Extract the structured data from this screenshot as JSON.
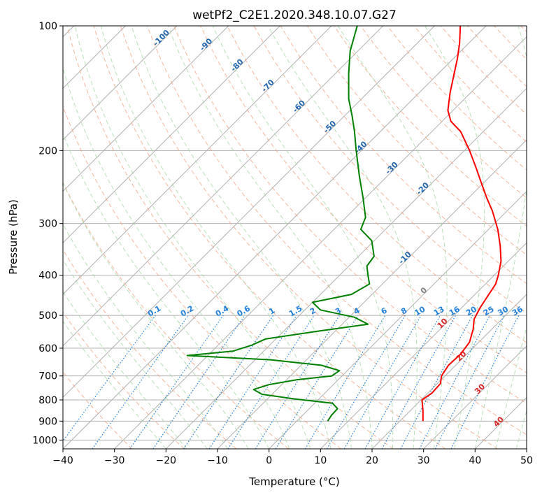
{
  "chart_data": {
    "type": "line",
    "title": "wetPf2_C2E1.2020.348.10.07.G27",
    "xlabel": "Temperature (°C)",
    "ylabel": "Pressure (hPa)",
    "xlim": [
      -40,
      50
    ],
    "ylim": [
      1050,
      100
    ],
    "y_scale": "log",
    "skew_degrees": 45,
    "grid": true,
    "x_ticks": [
      -40,
      -30,
      -20,
      -10,
      0,
      10,
      20,
      30,
      40,
      50
    ],
    "y_ticks": [
      100,
      200,
      300,
      400,
      500,
      600,
      700,
      800,
      900,
      1000
    ],
    "colors": {
      "temperature": "#ff0000",
      "dewpoint": "#008000",
      "isotherm_grid": "#b0b0b0",
      "dry_adiabat": "#f4a582",
      "moist_adiabat": "#a6d8a6",
      "mixing_ratio": "#1f7fd9",
      "isotherm_label_neg": "#2166ac",
      "isotherm_label_pos": "#d62728",
      "isotherm_label_zero": "#808080"
    },
    "series": [
      {
        "role": "temperature",
        "points": [
          {
            "p": 900,
            "t": 24.5
          },
          {
            "p": 850,
            "t": 22.5
          },
          {
            "p": 800,
            "t": 20.2
          },
          {
            "p": 770,
            "t": 20.8
          },
          {
            "p": 730,
            "t": 20.6
          },
          {
            "p": 700,
            "t": 19.3
          },
          {
            "p": 660,
            "t": 18.6
          },
          {
            "p": 620,
            "t": 18.8
          },
          {
            "p": 580,
            "t": 18.2
          },
          {
            "p": 540,
            "t": 16.4
          },
          {
            "p": 510,
            "t": 14.6
          },
          {
            "p": 480,
            "t": 13.6
          },
          {
            "p": 450,
            "t": 12.8
          },
          {
            "p": 420,
            "t": 12.0
          },
          {
            "p": 400,
            "t": 10.8
          },
          {
            "p": 370,
            "t": 8.6
          },
          {
            "p": 340,
            "t": 5.5
          },
          {
            "p": 310,
            "t": 1.8
          },
          {
            "p": 280,
            "t": -2.8
          },
          {
            "p": 260,
            "t": -6.5
          },
          {
            "p": 240,
            "t": -10.3
          },
          {
            "p": 220,
            "t": -14.4
          },
          {
            "p": 200,
            "t": -19.0
          },
          {
            "p": 180,
            "t": -24.4
          },
          {
            "p": 170,
            "t": -28.3
          },
          {
            "p": 160,
            "t": -31.0
          },
          {
            "p": 145,
            "t": -34.0
          },
          {
            "p": 130,
            "t": -37.0
          },
          {
            "p": 120,
            "t": -39.2
          },
          {
            "p": 110,
            "t": -41.8
          },
          {
            "p": 100,
            "t": -45.0
          }
        ]
      },
      {
        "role": "dewpoint",
        "points": [
          {
            "p": 900,
            "t": 6.0
          },
          {
            "p": 870,
            "t": 5.6
          },
          {
            "p": 840,
            "t": 5.5
          },
          {
            "p": 815,
            "t": 3.5
          },
          {
            "p": 795,
            "t": -5.0
          },
          {
            "p": 775,
            "t": -12.0
          },
          {
            "p": 755,
            "t": -14.5
          },
          {
            "p": 735,
            "t": -12.5
          },
          {
            "p": 715,
            "t": -8.0
          },
          {
            "p": 700,
            "t": -2.0
          },
          {
            "p": 680,
            "t": -1.5
          },
          {
            "p": 660,
            "t": -6.0
          },
          {
            "p": 640,
            "t": -17.0
          },
          {
            "p": 625,
            "t": -34.0
          },
          {
            "p": 610,
            "t": -26.0
          },
          {
            "p": 590,
            "t": -23.5
          },
          {
            "p": 570,
            "t": -22.0
          },
          {
            "p": 545,
            "t": -13.0
          },
          {
            "p": 525,
            "t": -5.0
          },
          {
            "p": 505,
            "t": -9.0
          },
          {
            "p": 485,
            "t": -17.0
          },
          {
            "p": 465,
            "t": -20.0
          },
          {
            "p": 445,
            "t": -14.0
          },
          {
            "p": 420,
            "t": -12.5
          },
          {
            "p": 400,
            "t": -14.5
          },
          {
            "p": 380,
            "t": -16.5
          },
          {
            "p": 360,
            "t": -17.0
          },
          {
            "p": 330,
            "t": -20.5
          },
          {
            "p": 310,
            "t": -24.8
          },
          {
            "p": 290,
            "t": -26.2
          },
          {
            "p": 260,
            "t": -30.5
          },
          {
            "p": 230,
            "t": -35.5
          },
          {
            "p": 200,
            "t": -41.0
          },
          {
            "p": 180,
            "t": -45.0
          },
          {
            "p": 165,
            "t": -48.5
          },
          {
            "p": 150,
            "t": -52.5
          },
          {
            "p": 130,
            "t": -57.5
          },
          {
            "p": 115,
            "t": -61.5
          },
          {
            "p": 100,
            "t": -65.0
          }
        ]
      }
    ],
    "isotherm_labels": [
      {
        "text": "-100",
        "value": -100
      },
      {
        "text": "-90",
        "value": -90
      },
      {
        "text": "-80",
        "value": -80
      },
      {
        "text": "-70",
        "value": -70
      },
      {
        "text": "-60",
        "value": -60
      },
      {
        "text": "-50",
        "value": -50
      },
      {
        "text": "-40",
        "value": -40
      },
      {
        "text": "-30",
        "value": -30
      },
      {
        "text": "-20",
        "value": -20
      },
      {
        "text": "-10",
        "value": -10
      },
      {
        "text": "0",
        "value": 0
      },
      {
        "text": "10",
        "value": 10
      },
      {
        "text": "20",
        "value": 20
      },
      {
        "text": "30",
        "value": 30
      },
      {
        "text": "40",
        "value": 40
      }
    ],
    "mixing_ratio_labels": [
      "0.1",
      "0.2",
      "0.4",
      "0.6",
      "1",
      "1.5",
      "2",
      "3",
      "4",
      "6",
      "8",
      "10",
      "13",
      "16",
      "20",
      "25",
      "30",
      "36"
    ]
  }
}
